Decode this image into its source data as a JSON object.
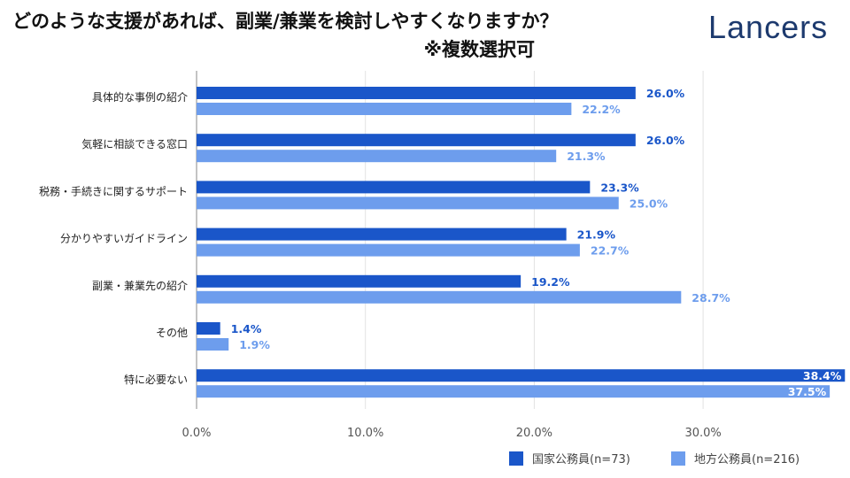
{
  "title": "どのような支援があれば、副業/兼業を検討しやすくなりますか？",
  "subtitle": "※複数選択可",
  "logo": "Lancers",
  "chart_data": {
    "type": "bar",
    "orientation": "horizontal",
    "categories": [
      "具体的な事例の紹介",
      "気軽に相談できる窓口",
      "税務・手続きに関するサポート",
      "分かりやすいガイドライン",
      "副業・兼業先の紹介",
      "その他",
      "特に必要ない"
    ],
    "series": [
      {
        "name": "国家公務員(n=73)",
        "color": "#1a56c9",
        "values": [
          26.0,
          26.0,
          23.3,
          21.9,
          19.2,
          1.4,
          38.4
        ]
      },
      {
        "name": "地方公務員(n=216)",
        "color": "#6d9ded",
        "values": [
          22.2,
          21.3,
          25.0,
          22.7,
          28.7,
          1.9,
          37.5
        ]
      }
    ],
    "xticks": [
      "0.0%",
      "10.0%",
      "20.0%",
      "30.0%"
    ],
    "xlim": [
      0,
      38.5
    ],
    "grid": true,
    "legend": "bottom-right"
  }
}
